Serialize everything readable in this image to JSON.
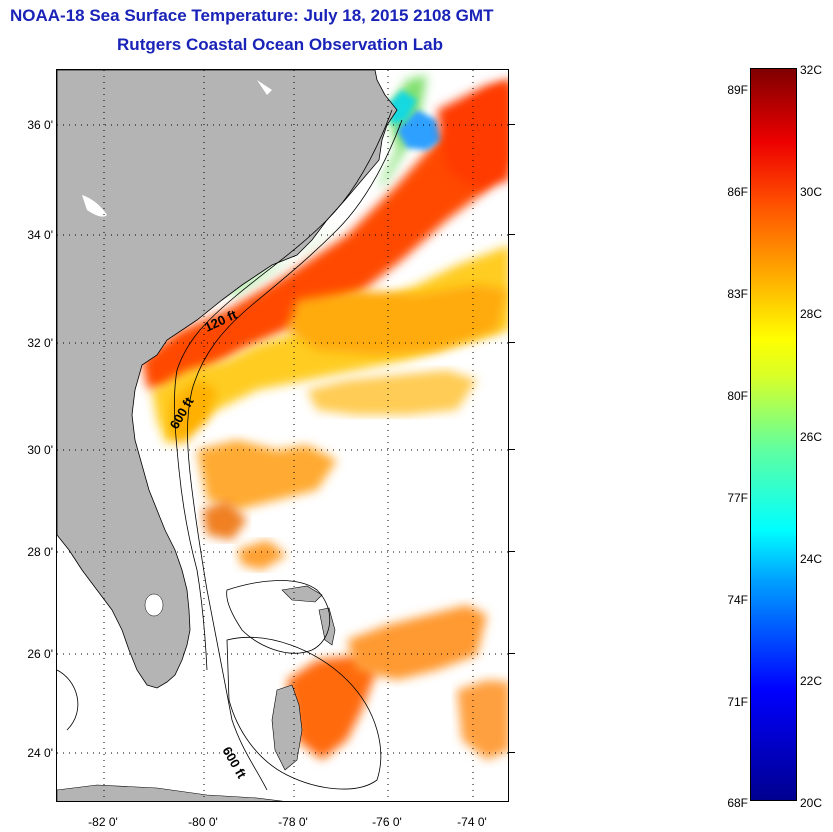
{
  "title": {
    "line1": "NOAA-18 Sea Surface Temperature:  July 18, 2015 2108 GMT",
    "line2": "Rutgers Coastal Ocean Observation Lab"
  },
  "map": {
    "lat_labels": [
      "36 0'",
      "34 0'",
      "32 0'",
      "30 0'",
      "28 0'",
      "26 0'",
      "24 0'"
    ],
    "lon_labels": [
      "-82 0'",
      "-80 0'",
      "-78 0'",
      "-76 0'",
      "-74 0'"
    ],
    "contour_labels": [
      "120 ft",
      "600 ft",
      "600 ft"
    ],
    "lat_range": [
      23,
      37.1
    ],
    "lon_range": [
      -83,
      -73
    ],
    "land_color": "#b4b4b4",
    "background_color": "#ffffff"
  },
  "colorbar": {
    "fahrenheit_labels": [
      "89F",
      "86F",
      "83F",
      "80F",
      "77F",
      "74F",
      "71F",
      "68F"
    ],
    "celsius_labels": [
      "32C",
      "30C",
      "28C",
      "26C",
      "24C",
      "22C",
      "20C"
    ],
    "range_c": [
      20,
      32
    ],
    "colormap": "jet"
  }
}
